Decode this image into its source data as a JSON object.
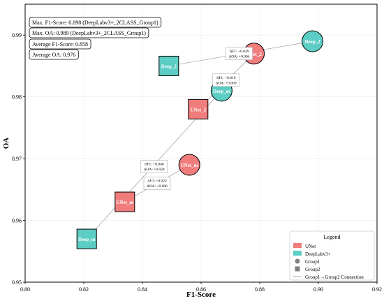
{
  "chart_data": {
    "type": "scatter",
    "xlabel": "F1-Score",
    "ylabel": "OA",
    "xlim": [
      0.8,
      0.92
    ],
    "ylim": [
      0.95,
      0.995
    ],
    "xticks": [
      "0.80",
      "0.82",
      "0.84",
      "0.86",
      "0.88",
      "0.90",
      "0.92"
    ],
    "yticks": [
      "0.95",
      "0.96",
      "0.97",
      "0.98",
      "0.99"
    ],
    "grid": true,
    "colors": {
      "UNet": "#f07c7c",
      "DeepLabv3+": "#5ccdc4",
      "connection": "#aaaaaa"
    },
    "points": [
      {
        "label": "UNet_2",
        "model": "UNet",
        "group": "Group1",
        "x": 0.878,
        "y": 0.987
      },
      {
        "label": "Deep_2",
        "model": "DeepLabv3+",
        "group": "Group1",
        "x": 0.898,
        "y": 0.989
      },
      {
        "label": "Deep_m",
        "model": "DeepLabv3+",
        "group": "Group1",
        "x": 0.867,
        "y": 0.981
      },
      {
        "label": "UNet_m",
        "model": "UNet",
        "group": "Group1",
        "x": 0.856,
        "y": 0.969
      },
      {
        "label": "Deep_2",
        "model": "DeepLabv3+",
        "group": "Group2",
        "x": 0.849,
        "y": 0.985
      },
      {
        "label": "UNet_2",
        "model": "UNet",
        "group": "Group2",
        "x": 0.859,
        "y": 0.978
      },
      {
        "label": "UNet_m",
        "model": "UNet",
        "group": "Group2",
        "x": 0.834,
        "y": 0.963
      },
      {
        "label": "Deep_m",
        "model": "DeepLabv3+",
        "group": "Group2",
        "x": 0.821,
        "y": 0.957
      }
    ],
    "connections": [
      {
        "from": [
          0.849,
          0.985
        ],
        "to": [
          0.898,
          0.989
        ],
        "note": [
          "ΔF1: +0.049",
          "ΔOA: +0.004"
        ],
        "at": [
          0.873,
          0.987
        ]
      },
      {
        "from": [
          0.821,
          0.957
        ],
        "to": [
          0.867,
          0.981
        ],
        "note": [
          "ΔF1: +0.046",
          "ΔOA: +0.024"
        ],
        "at": [
          0.844,
          0.9687
        ]
      },
      {
        "from": [
          0.859,
          0.978
        ],
        "to": [
          0.878,
          0.987
        ],
        "note": [
          "ΔF1: +0.019",
          "ΔOA: +0.009"
        ],
        "at": [
          0.8685,
          0.9827
        ]
      },
      {
        "from": [
          0.834,
          0.963
        ],
        "to": [
          0.856,
          0.969
        ],
        "note": [
          "ΔF1: +0.022",
          "ΔOA: +0.006"
        ],
        "at": [
          0.845,
          0.966
        ]
      }
    ],
    "annotations": [
      "Max. F1-Score: 0.898 (DeepLabv3+_2CLASS_Group1)",
      "Max. OA: 0.989 (DeepLabv3+_2CLASS_Group1)",
      "Average F1-Score: 0.858",
      "Average OA: 0.976"
    ],
    "legend": {
      "title": "Legend",
      "placement": "bottom-right",
      "entries": [
        "UNet",
        "DeepLabv3+",
        "Group1",
        "Group2",
        "Group1→Group2 Connection"
      ]
    }
  }
}
